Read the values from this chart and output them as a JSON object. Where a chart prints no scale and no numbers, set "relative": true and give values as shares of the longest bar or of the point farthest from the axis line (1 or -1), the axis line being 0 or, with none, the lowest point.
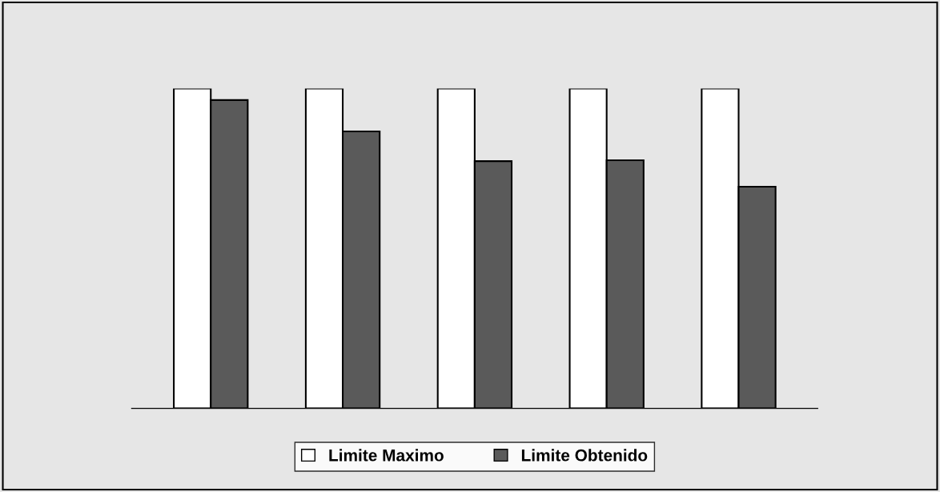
{
  "chart_data": {
    "type": "bar",
    "relative": true,
    "categories": [
      null,
      null,
      null,
      null,
      null
    ],
    "series": [
      {
        "name": "Limite Maximo",
        "color": "#ffffff",
        "values": [
          1,
          1,
          1,
          1,
          1
        ]
      },
      {
        "name": "Limite Obtenido",
        "color": "#5a5a5a",
        "values": [
          0.964,
          0.866,
          0.773,
          0.776,
          0.693
        ]
      }
    ],
    "legend": "bottom",
    "grid": false
  }
}
